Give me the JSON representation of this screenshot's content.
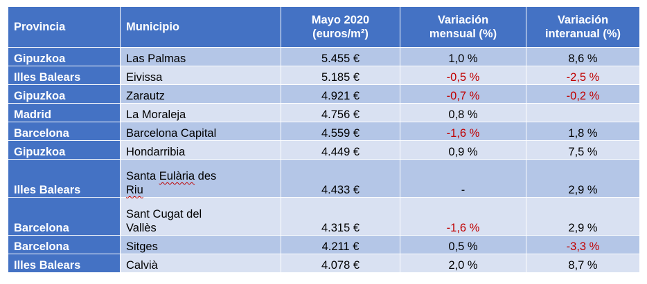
{
  "headers": {
    "provincia": "Provincia",
    "municipio": "Municipio",
    "mayo_line1": "Mayo 2020",
    "mayo_line2": "(euros/m²)",
    "var_mensual_line1": "Variación",
    "var_mensual_line2": "mensual (%)",
    "var_interanual_line1": "Variación",
    "var_interanual_line2": "interanual (%)"
  },
  "rows": [
    {
      "provincia": "Gipuzkoa",
      "municipio": "Las Palmas",
      "precio": "5.455 €",
      "mensual": "1,0 %",
      "interanual": "8,6 %"
    },
    {
      "provincia": "Illes Balears",
      "municipio": "Eivissa",
      "precio": "5.185 €",
      "mensual": "-0,5 %",
      "interanual": "-2,5 %"
    },
    {
      "provincia": "Gipuzkoa",
      "municipio": "Zarautz",
      "precio": "4.921 €",
      "mensual": "-0,7 %",
      "interanual": "-0,2 %"
    },
    {
      "provincia": "Madrid",
      "municipio": "La Moraleja",
      "precio": "4.756 €",
      "mensual": "0,8 %",
      "interanual": ""
    },
    {
      "provincia": "Barcelona",
      "municipio": "Barcelona Capital",
      "precio": "4.559 €",
      "mensual": "-1,6 %",
      "interanual": "1,8 %"
    },
    {
      "provincia": "Gipuzkoa",
      "municipio": "Hondarribia",
      "precio": "4.449 €",
      "mensual": "0,9 %",
      "interanual": "7,5 %"
    },
    {
      "provincia": "Illes Balears",
      "municipio_line1_a": "Santa ",
      "municipio_line1_b": "Eulària",
      "municipio_line1_c": " des",
      "municipio_line2": "Riu",
      "precio": "4.433 €",
      "mensual": "-",
      "interanual": "2,9 %"
    },
    {
      "provincia": "Barcelona",
      "municipio_line1": "Sant Cugat del",
      "municipio_line2": "Vallès",
      "precio": "4.315 €",
      "mensual": "-1,6 %",
      "interanual": "2,9 %"
    },
    {
      "provincia": "Barcelona",
      "municipio": "Sitges",
      "precio": "4.211 €",
      "mensual": "0,5 %",
      "interanual": "-3,3 %"
    },
    {
      "provincia": "Illes Balears",
      "municipio": "Calvià",
      "precio": "4.078 €",
      "mensual": "2,0 %",
      "interanual": "8,7 %"
    }
  ],
  "colors": {
    "header_bg": "#4472c4",
    "row_dark": "#b4c6e7",
    "row_light": "#d9e1f2",
    "negative": "#c00000"
  }
}
